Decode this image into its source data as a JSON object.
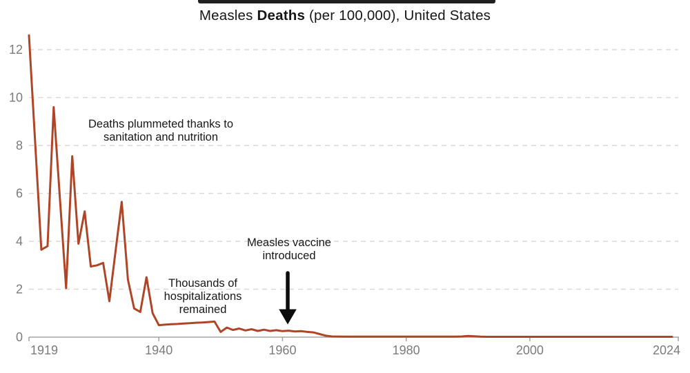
{
  "page": {
    "background": "#ffffff"
  },
  "top_bar": {
    "color": "#1f1f1f"
  },
  "title": {
    "prefix": "Measles ",
    "bold": "Deaths",
    "suffix": " (per 100,000), United States"
  },
  "chart_data": {
    "type": "line",
    "title": "Measles Deaths (per 100,000), United States",
    "xlabel": "",
    "ylabel": "",
    "xlim": [
      1919,
      2024
    ],
    "ylim": [
      0,
      12
    ],
    "grid": "horizontal-dashed",
    "legend": "none",
    "line_color": "#af4526",
    "axis_color": "#a3a3a3",
    "grid_color": "#d9d9d9",
    "tick_label_color": "#7b7b7b",
    "x_ticks": [
      {
        "year": 1919,
        "label": "1919"
      },
      {
        "year": 1940,
        "label": "1940"
      },
      {
        "year": 1960,
        "label": "1960"
      },
      {
        "year": 1980,
        "label": "1980"
      },
      {
        "year": 2000,
        "label": "2000"
      },
      {
        "year": 2024,
        "label": "2024"
      }
    ],
    "y_ticks": [
      {
        "value": 0,
        "label": "0"
      },
      {
        "value": 2,
        "label": "2"
      },
      {
        "value": 4,
        "label": "4"
      },
      {
        "value": 6,
        "label": "6"
      },
      {
        "value": 8,
        "label": "8"
      },
      {
        "value": 10,
        "label": "10"
      },
      {
        "value": 12,
        "label": "12"
      }
    ],
    "series": [
      {
        "name": "Measles deaths per 100,000",
        "x_start_year": 1919,
        "x_step_years": 1,
        "values": [
          12.6,
          8.1,
          3.65,
          3.8,
          9.6,
          5.8,
          2.05,
          7.55,
          3.9,
          5.25,
          2.95,
          3.0,
          3.1,
          1.5,
          3.6,
          5.65,
          2.4,
          1.2,
          1.05,
          2.5,
          1.0,
          0.5,
          0.52,
          0.54,
          0.55,
          0.57,
          0.58,
          0.6,
          0.61,
          0.63,
          0.65,
          0.22,
          0.4,
          0.3,
          0.36,
          0.28,
          0.33,
          0.26,
          0.31,
          0.26,
          0.29,
          0.25,
          0.27,
          0.24,
          0.25,
          0.22,
          0.2,
          0.13,
          0.06,
          0.03,
          0.025,
          0.02,
          0.02,
          0.02,
          0.02,
          0.02,
          0.02,
          0.02,
          0.02,
          0.02,
          0.02,
          0.02,
          0.02,
          0.02,
          0.02,
          0.02,
          0.02,
          0.02,
          0.02,
          0.02,
          0.03,
          0.05,
          0.035,
          0.02,
          0.015,
          0.015,
          0.015,
          0.015,
          0.015,
          0.015,
          0.015,
          0.015,
          0.015,
          0.015,
          0.015,
          0.015,
          0.015,
          0.015,
          0.015,
          0.015,
          0.015,
          0.015,
          0.015,
          0.015,
          0.015,
          0.015,
          0.015,
          0.015,
          0.015,
          0.015,
          0.015,
          0.015,
          0.015,
          0.015,
          0.015
        ]
      }
    ],
    "annotations": {
      "sanitation": {
        "lines": [
          "Deaths plummeted thanks to",
          "sanitation and nutrition"
        ]
      },
      "hospitalizations": {
        "lines": [
          "Thousands of",
          "hospitalizations",
          "remained"
        ]
      },
      "vaccine": {
        "lines": [
          "Measles vaccine",
          "introduced"
        ],
        "arrow": "downward-arrow at year 1961 pointing to line"
      }
    }
  }
}
